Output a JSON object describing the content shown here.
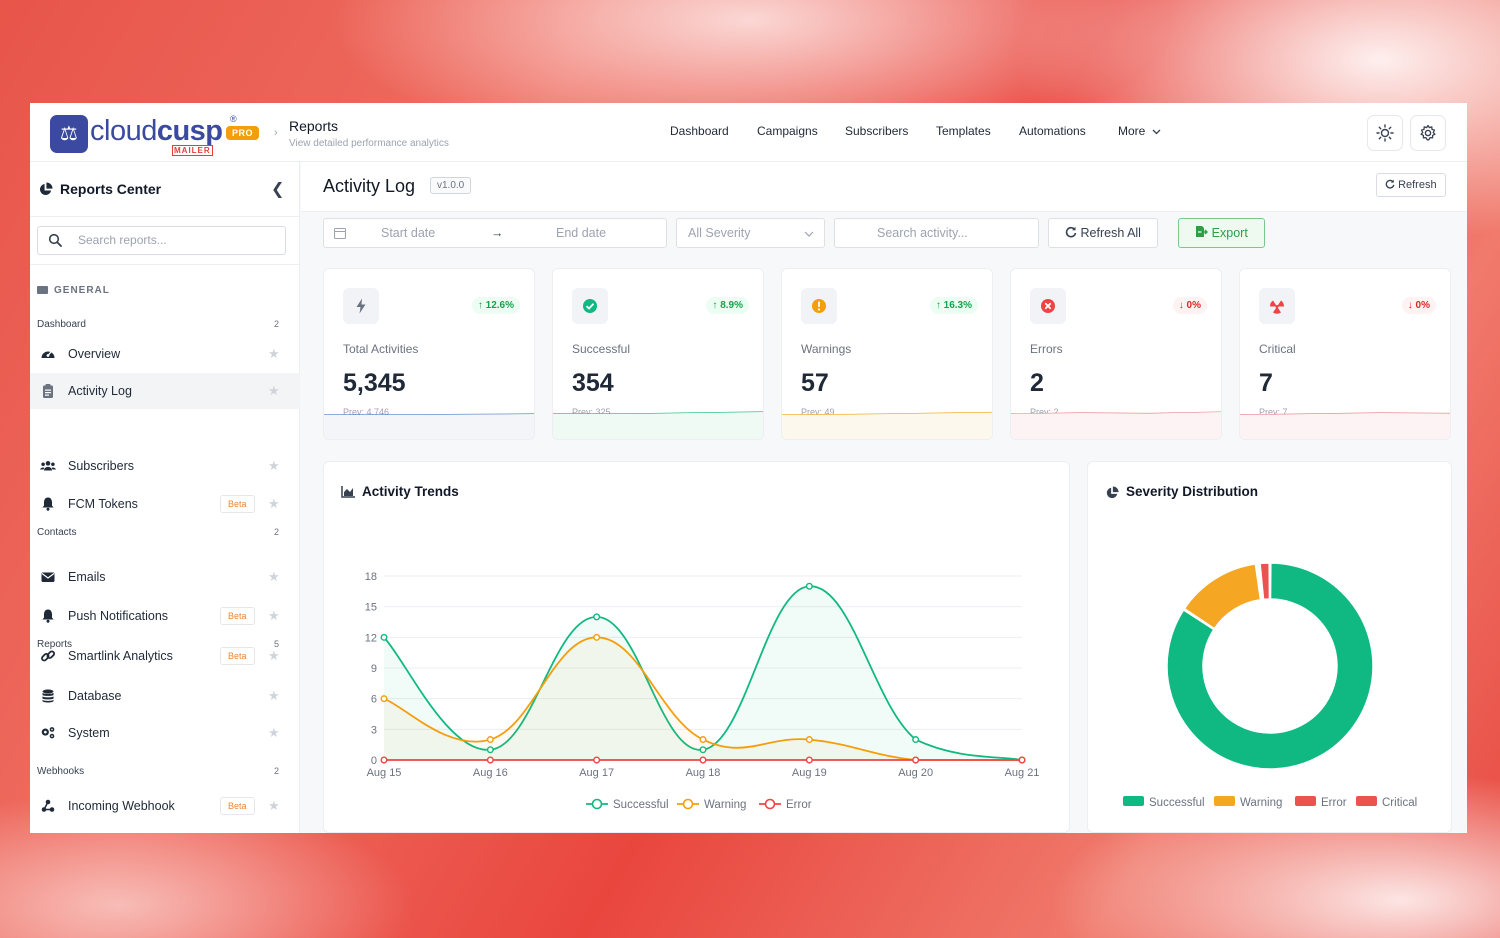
{
  "app": {
    "logo_text_light": "cloud",
    "logo_text_bold": "cusp",
    "logo_sub": "MAILER",
    "logo_reg": "®",
    "badge": "PRO",
    "breadcrumb_title": "Reports",
    "breadcrumb_subtitle": "View detailed performance analytics"
  },
  "topnav": [
    "Dashboard",
    "Campaigns",
    "Subscribers",
    "Templates",
    "Automations",
    "More"
  ],
  "sidebar": {
    "title": "Reports Center",
    "search_placeholder": "Search reports...",
    "section": "GENERAL",
    "groups": [
      {
        "label": "Dashboard",
        "count": "2"
      },
      {
        "label": "Contacts",
        "count": "2"
      },
      {
        "label": "Reports",
        "count": "5"
      },
      {
        "label": "Webhooks",
        "count": "2"
      }
    ],
    "items": [
      {
        "label": "Overview",
        "icon": "dashboard-icon"
      },
      {
        "label": "Activity Log",
        "icon": "clipboard-icon",
        "active": true
      },
      {
        "label": "Subscribers",
        "icon": "users-icon"
      },
      {
        "label": "FCM Tokens",
        "icon": "bell-icon",
        "badge": "Beta"
      },
      {
        "label": "Emails",
        "icon": "envelope-icon"
      },
      {
        "label": "Push Notifications",
        "icon": "bell-icon",
        "badge": "Beta"
      },
      {
        "label": "Smartlink Analytics",
        "icon": "link-icon",
        "badge": "Beta"
      },
      {
        "label": "Database",
        "icon": "database-icon"
      },
      {
        "label": "System",
        "icon": "cogs-icon"
      },
      {
        "label": "Incoming Webhook",
        "icon": "webhook-icon",
        "badge": "Beta"
      }
    ]
  },
  "main": {
    "title": "Activity Log",
    "version": "v1.0.0",
    "refresh_label": "Refresh",
    "filters": {
      "start_placeholder": "Start date",
      "end_placeholder": "End date",
      "arrow": "→",
      "severity": "All Severity",
      "search_placeholder": "Search activity...",
      "refresh_all": "Refresh All",
      "export": "Export"
    }
  },
  "stats": [
    {
      "label": "Total Activities",
      "value": "5,345",
      "change": "12.6%",
      "direction": "up",
      "prev": "Prev: 4,746",
      "color": "#3b82f6",
      "icon": "bolt-icon"
    },
    {
      "label": "Successful",
      "value": "354",
      "change": "8.9%",
      "direction": "up",
      "prev": "Prev: 325",
      "color": "#10b981",
      "icon": "check-circle-icon"
    },
    {
      "label": "Warnings",
      "value": "57",
      "change": "16.3%",
      "direction": "up",
      "prev": "Prev: 49",
      "color": "#f59e0b",
      "icon": "exclamation-icon"
    },
    {
      "label": "Errors",
      "value": "2",
      "change": "0%",
      "direction": "down",
      "prev": "Prev: 2",
      "color": "#ef4444",
      "icon": "x-circle-icon"
    },
    {
      "label": "Critical",
      "value": "7",
      "change": "0%",
      "direction": "down",
      "prev": "Prev: 7",
      "color": "#ef4444",
      "icon": "radiation-icon"
    }
  ],
  "chart_data": [
    {
      "type": "line",
      "title": "Activity Trends",
      "x": [
        "Aug 15",
        "Aug 16",
        "Aug 17",
        "Aug 18",
        "Aug 19",
        "Aug 20",
        "Aug 21"
      ],
      "yticks": [
        0,
        3,
        6,
        9,
        12,
        15,
        18
      ],
      "ylim": [
        0,
        18
      ],
      "grid": true,
      "legend": "bottom",
      "series": [
        {
          "name": "Successful",
          "values": [
            12,
            1,
            14,
            1,
            17,
            2,
            0
          ],
          "color": "#10b981"
        },
        {
          "name": "Warning",
          "values": [
            6,
            2,
            12,
            2,
            2,
            0,
            0
          ],
          "color": "#f59e0b"
        },
        {
          "name": "Error",
          "values": [
            0,
            0,
            0,
            0,
            0,
            0,
            0
          ],
          "color": "#ef4444"
        }
      ]
    },
    {
      "type": "pie",
      "title": "Severity Distribution",
      "legend": "bottom",
      "slices": [
        {
          "name": "Successful",
          "value": 354,
          "color": "#10b981"
        },
        {
          "name": "Warning",
          "value": 57,
          "color": "#f5a623"
        },
        {
          "name": "Error",
          "value": 2,
          "color": "#e85450"
        },
        {
          "name": "Critical",
          "value": 7,
          "color": "#e85450"
        }
      ]
    }
  ]
}
